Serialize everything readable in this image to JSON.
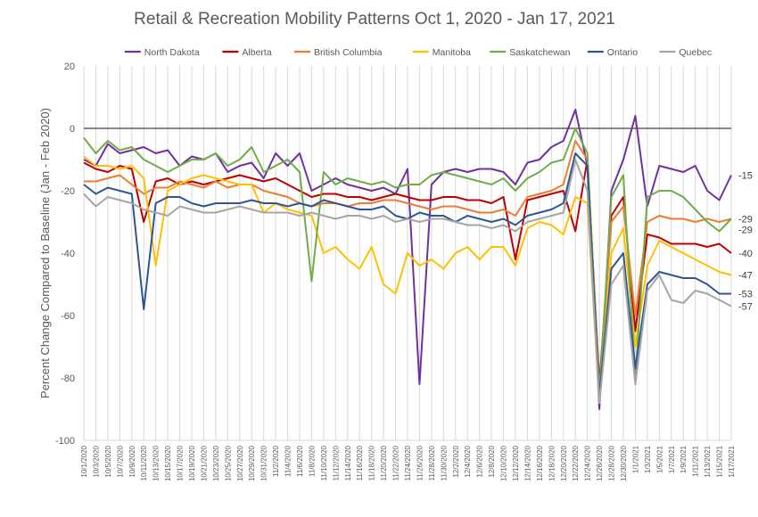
{
  "chart_data": {
    "type": "line",
    "title": "Retail & Recreation Mobility Patterns Oct 1, 2020 - Jan 17, 2021",
    "ylabel": "Percent Change Compared to Baseline (Jan - Feb 2020)",
    "xlabel": "",
    "ylim": [
      -100,
      20
    ],
    "yticks": [
      20,
      0,
      -20,
      -40,
      -60,
      -80,
      -100
    ],
    "grid": "vertical",
    "legend_position": "top",
    "x": [
      "10/1/2020",
      "10/3/2020",
      "10/5/2020",
      "10/7/2020",
      "10/9/2020",
      "10/11/2020",
      "10/13/2020",
      "10/15/2020",
      "10/17/2020",
      "10/19/2020",
      "10/21/2020",
      "10/23/2020",
      "10/25/2020",
      "10/27/2020",
      "10/29/2020",
      "10/31/2020",
      "11/2/2020",
      "11/4/2020",
      "11/6/2020",
      "11/8/2020",
      "11/10/2020",
      "11/12/2020",
      "11/14/2020",
      "11/16/2020",
      "11/18/2020",
      "11/20/2020",
      "11/22/2020",
      "11/24/2020",
      "11/26/2020",
      "11/28/2020",
      "11/30/2020",
      "12/2/2020",
      "12/4/2020",
      "12/6/2020",
      "12/8/2020",
      "12/10/2020",
      "12/12/2020",
      "12/14/2020",
      "12/16/2020",
      "12/18/2020",
      "12/20/2020",
      "12/22/2020",
      "12/24/2020",
      "12/26/2020",
      "12/28/2020",
      "12/30/2020",
      "1/1/2021",
      "1/3/2021",
      "1/5/2021",
      "1/7/2021",
      "1/9/2021",
      "1/11/2021",
      "1/13/2021",
      "1/15/2021",
      "1/17/2021"
    ],
    "series": [
      {
        "name": "North Dakota",
        "color": "#7030a0",
        "values": [
          -10,
          -12,
          -5,
          -8,
          -7,
          -6,
          -8,
          -7,
          -12,
          -9,
          -10,
          -8,
          -14,
          -12,
          -11,
          -16,
          -8,
          -12,
          -8,
          -20,
          -18,
          -16,
          -18,
          -19,
          -20,
          -19,
          -21,
          -13,
          -82,
          -18,
          -14,
          -13,
          -14,
          -13,
          -13,
          -14,
          -18,
          -11,
          -10,
          -6,
          -4,
          6,
          -12,
          -90,
          -20,
          -10,
          4,
          -25,
          -12,
          -13,
          -14,
          -12,
          -20,
          -23,
          -15
        ],
        "end_label": "-15"
      },
      {
        "name": "Alberta",
        "color": "#c00000",
        "values": [
          -11,
          -13,
          -14,
          -12,
          -13,
          -30,
          -17,
          -16,
          -18,
          -17,
          -18,
          -17,
          -16,
          -15,
          -16,
          -17,
          -16,
          -18,
          -20,
          -22,
          -21,
          -21,
          -22,
          -22,
          -23,
          -22,
          -21,
          -22,
          -23,
          -23,
          -22,
          -22,
          -23,
          -23,
          -24,
          -22,
          -42,
          -23,
          -22,
          -21,
          -20,
          -33,
          -10,
          -82,
          -28,
          -22,
          -65,
          -34,
          -35,
          -37,
          -37,
          -37,
          -38,
          -37,
          -40
        ],
        "end_label": "-40"
      },
      {
        "name": "British Columbia",
        "color": "#ed7d31",
        "values": [
          -17,
          -17,
          -16,
          -15,
          -18,
          -21,
          -19,
          -19,
          -17,
          -18,
          -19,
          -17,
          -19,
          -18,
          -18,
          -20,
          -21,
          -22,
          -24,
          -25,
          -24,
          -24,
          -25,
          -24,
          -24,
          -23,
          -23,
          -24,
          -25,
          -26,
          -25,
          -25,
          -26,
          -27,
          -27,
          -26,
          -28,
          -22,
          -21,
          -20,
          -18,
          -4,
          -10,
          -84,
          -30,
          -25,
          -60,
          -30,
          -28,
          -29,
          -29,
          -30,
          -29,
          -30,
          -29
        ],
        "end_label": "-29"
      },
      {
        "name": "Manitoba",
        "color": "#ffc000",
        "values": [
          -9,
          -12,
          -12,
          -13,
          -12,
          -16,
          -44,
          -20,
          -18,
          -16,
          -15,
          -16,
          -17,
          -18,
          -18,
          -27,
          -24,
          -26,
          -27,
          -28,
          -40,
          -38,
          -42,
          -45,
          -38,
          -50,
          -53,
          -40,
          -44,
          -42,
          -45,
          -40,
          -38,
          -42,
          -38,
          -38,
          -44,
          -32,
          -30,
          -31,
          -34,
          -22,
          -24,
          -88,
          -40,
          -32,
          -70,
          -44,
          -36,
          -38,
          -40,
          -42,
          -44,
          -46,
          -47
        ],
        "end_label": "-47"
      },
      {
        "name": "Saskatchewan",
        "color": "#70ad47",
        "values": [
          -3,
          -8,
          -4,
          -7,
          -6,
          -10,
          -12,
          -14,
          -12,
          -10,
          -10,
          -8,
          -12,
          -10,
          -6,
          -14,
          -12,
          -10,
          -14,
          -49,
          -14,
          -18,
          -16,
          -17,
          -18,
          -17,
          -19,
          -18,
          -18,
          -15,
          -14,
          -15,
          -16,
          -17,
          -18,
          -16,
          -20,
          -16,
          -14,
          -11,
          -10,
          0,
          -8,
          -85,
          -22,
          -15,
          -80,
          -22,
          -20,
          -20,
          -22,
          -26,
          -30,
          -33,
          -29
        ],
        "end_label": "-29"
      },
      {
        "name": "Ontario",
        "color": "#2f5597",
        "values": [
          -18,
          -21,
          -19,
          -20,
          -21,
          -58,
          -24,
          -22,
          -22,
          -24,
          -25,
          -24,
          -24,
          -24,
          -23,
          -24,
          -24,
          -25,
          -24,
          -25,
          -23,
          -24,
          -25,
          -26,
          -26,
          -25,
          -28,
          -29,
          -27,
          -28,
          -28,
          -30,
          -28,
          -29,
          -30,
          -29,
          -31,
          -28,
          -27,
          -26,
          -24,
          -8,
          -12,
          -86,
          -45,
          -40,
          -77,
          -50,
          -46,
          -47,
          -48,
          -48,
          -50,
          -53,
          -53
        ],
        "end_label": "-53"
      },
      {
        "name": "Quebec",
        "color": "#a5a5a5",
        "values": [
          -21,
          -25,
          -22,
          -23,
          -24,
          -26,
          -27,
          -28,
          -25,
          -26,
          -27,
          -27,
          -26,
          -25,
          -26,
          -27,
          -27,
          -27,
          -28,
          -27,
          -28,
          -29,
          -28,
          -28,
          -29,
          -28,
          -30,
          -29,
          -30,
          -29,
          -29,
          -30,
          -31,
          -31,
          -32,
          -31,
          -33,
          -30,
          -29,
          -28,
          -27,
          -10,
          -20,
          -88,
          -50,
          -44,
          -82,
          -52,
          -47,
          -55,
          -56,
          -52,
          -53,
          -55,
          -57
        ],
        "end_label": "-57"
      }
    ]
  }
}
